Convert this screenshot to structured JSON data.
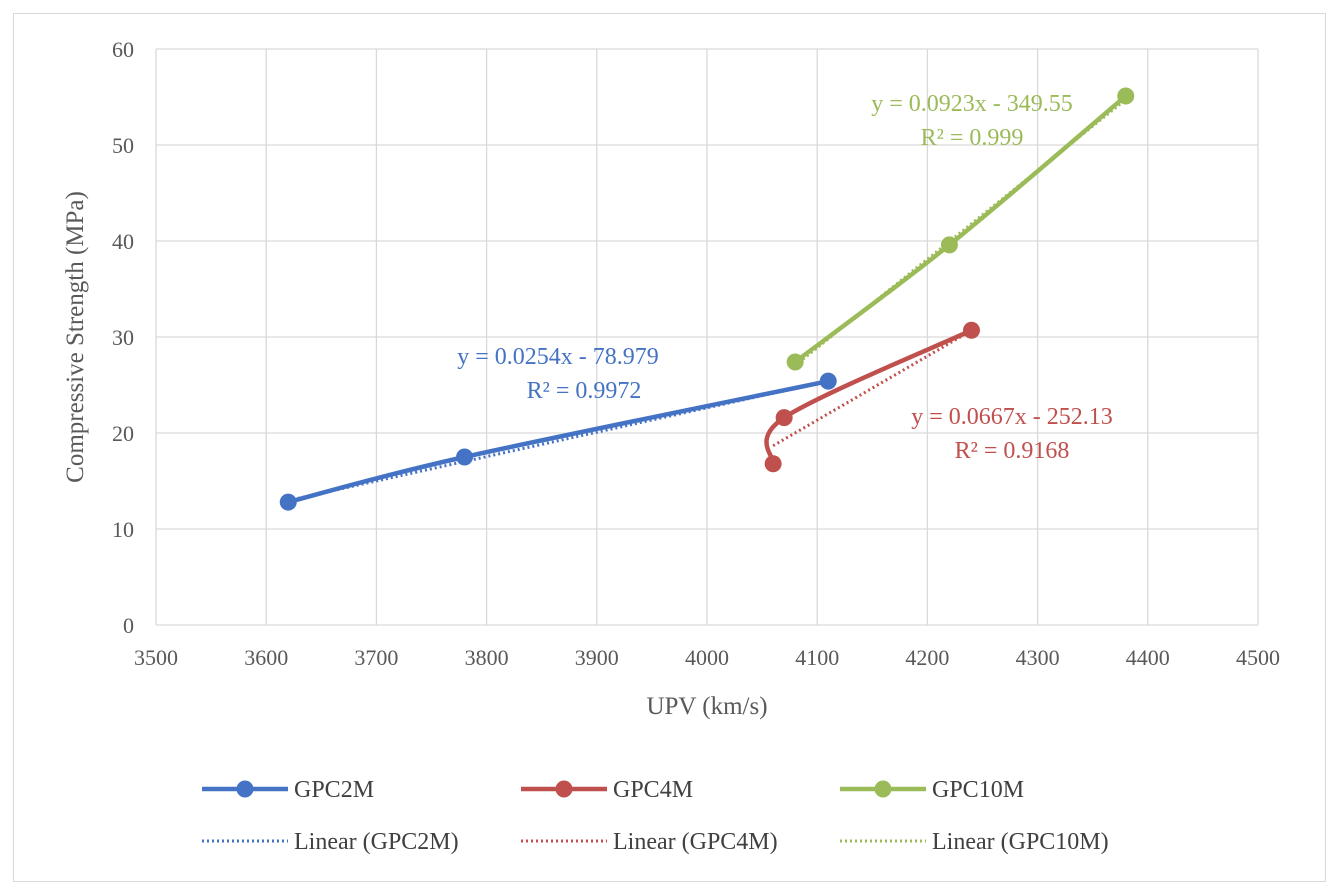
{
  "chart_data": {
    "type": "scatter",
    "title": "",
    "xlabel": "UPV (km/s)",
    "ylabel": "Compressive Strength (MPa)",
    "xlim": [
      3500,
      4500
    ],
    "ylim": [
      0,
      60
    ],
    "x_ticks": [
      "3500",
      "3600",
      "3700",
      "3800",
      "3900",
      "4000",
      "4100",
      "4200",
      "4300",
      "4400",
      "4500"
    ],
    "y_ticks": [
      "0",
      "10",
      "20",
      "30",
      "40",
      "50",
      "60"
    ],
    "grid": true,
    "legend_position": "bottom",
    "series": [
      {
        "name": "GPC2M",
        "color": "#4472c4",
        "points": [
          {
            "x": 3620,
            "y": 12.8
          },
          {
            "x": 3780,
            "y": 17.5
          },
          {
            "x": 4110,
            "y": 25.4
          }
        ],
        "trendline": {
          "name": "Linear (GPC2M)",
          "slope": 0.0254,
          "intercept": -78.979,
          "equation": "y = 0.0254x - 78.979",
          "r2": "R² = 0.9972"
        }
      },
      {
        "name": "GPC4M",
        "color": "#c0504d",
        "points": [
          {
            "x": 4060,
            "y": 16.8
          },
          {
            "x": 4070,
            "y": 21.6
          },
          {
            "x": 4240,
            "y": 30.7
          }
        ],
        "trendline": {
          "name": "Linear (GPC4M)",
          "slope": 0.0667,
          "intercept": -252.13,
          "equation": "y = 0.0667x - 252.13",
          "r2": "R² = 0.9168"
        }
      },
      {
        "name": "GPC10M",
        "color": "#9bbb59",
        "points": [
          {
            "x": 4080,
            "y": 27.4
          },
          {
            "x": 4220,
            "y": 39.6
          },
          {
            "x": 4380,
            "y": 55.1
          }
        ],
        "trendline": {
          "name": "Linear (GPC10M)",
          "slope": 0.0923,
          "intercept": -349.55,
          "equation": "y = 0.0923x - 349.55",
          "r2": "R² = 0.999"
        }
      }
    ]
  }
}
